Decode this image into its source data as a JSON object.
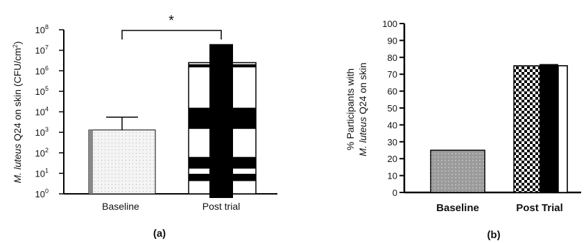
{
  "chart_data": [
    {
      "type": "bar",
      "panel_label": "(a)",
      "ylabel": {
        "italic_part": "M. luteus",
        "rest": " Q24 on skin (CFU/cm",
        "sup": "2",
        "end": ")"
      },
      "y_scale": "log",
      "ylim": [
        1,
        100000000
      ],
      "y_ticks": [
        {
          "base": "10",
          "exp": "0"
        },
        {
          "base": "10",
          "exp": "1"
        },
        {
          "base": "10",
          "exp": "2"
        },
        {
          "base": "10",
          "exp": "3"
        },
        {
          "base": "10",
          "exp": "4"
        },
        {
          "base": "10",
          "exp": "5"
        },
        {
          "base": "10",
          "exp": "6"
        },
        {
          "base": "10",
          "exp": "7"
        },
        {
          "base": "10",
          "exp": "8"
        }
      ],
      "categories": [
        "Baseline",
        "Post trial"
      ],
      "values": [
        1300,
        2500000
      ],
      "error_upper": [
        5500,
        20000000
      ],
      "significance": "*",
      "grid": false
    },
    {
      "type": "bar",
      "panel_label": "(b)",
      "ylabel": {
        "line1": "% Participants with",
        "italic_part": "M. luteus",
        "rest": " Q24 on skin"
      },
      "ylim": [
        0,
        100
      ],
      "y_ticks": [
        "0",
        "10",
        "20",
        "30",
        "40",
        "50",
        "60",
        "70",
        "80",
        "90",
        "100"
      ],
      "categories": [
        "Baseline",
        "Post Trial"
      ],
      "values": [
        25,
        75
      ],
      "subbars": [
        76,
        75
      ],
      "grid": false
    }
  ],
  "colors": {
    "axis": "#000000",
    "bar_fill": "#999999",
    "dark": "#000000",
    "light_dot": "#cccccc"
  }
}
